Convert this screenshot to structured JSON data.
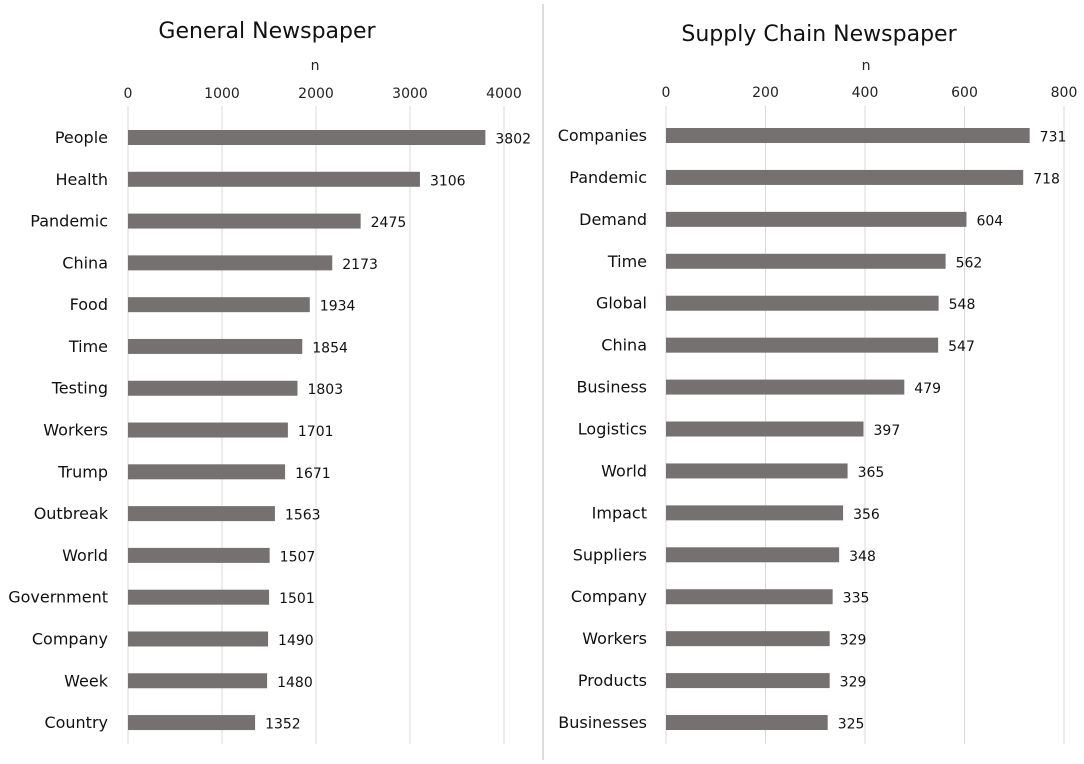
{
  "chart_data": [
    {
      "type": "bar",
      "orientation": "horizontal",
      "title": "General Newspaper",
      "xlabel": "n",
      "ylabel": "",
      "xlim": [
        0,
        4000
      ],
      "ticks": [
        0,
        1000,
        2000,
        3000,
        4000
      ],
      "tick_labels": [
        "0",
        "1000",
        "2000",
        "3000",
        "4000"
      ],
      "axis_position": "top",
      "grid": true,
      "categories": [
        "People",
        "Health",
        "Pandemic",
        "China",
        "Food",
        "Time",
        "Testing",
        "Workers",
        "Trump",
        "Outbreak",
        "World",
        "Government",
        "Company",
        "Week",
        "Country"
      ],
      "values": [
        3802,
        3106,
        2475,
        2173,
        1934,
        1854,
        1803,
        1701,
        1671,
        1563,
        1507,
        1501,
        1490,
        1480,
        1352
      ],
      "value_labels": [
        "3802",
        "3106",
        "2475",
        "2173",
        "1934",
        "1854",
        "1803",
        "1701",
        "1671",
        "1563",
        "1507",
        "1501",
        "1490",
        "1480",
        "1352"
      ],
      "bar_color": "#767171"
    },
    {
      "type": "bar",
      "orientation": "horizontal",
      "title": "Supply Chain Newspaper",
      "xlabel": "n",
      "ylabel": "",
      "xlim": [
        0,
        800
      ],
      "ticks": [
        0,
        200,
        400,
        600,
        800
      ],
      "tick_labels": [
        "0",
        "200",
        "400",
        "600",
        "800"
      ],
      "axis_position": "top",
      "grid": true,
      "categories": [
        "Companies",
        "Pandemic",
        "Demand",
        "Time",
        "Global",
        "China",
        "Business",
        "Logistics",
        "World",
        "Impact",
        "Suppliers",
        "Company",
        "Workers",
        "Products",
        "Businesses"
      ],
      "values": [
        731,
        718,
        604,
        562,
        548,
        547,
        479,
        397,
        365,
        356,
        348,
        335,
        329,
        329,
        325
      ],
      "value_labels": [
        "731",
        "718",
        "604",
        "562",
        "548",
        "547",
        "479",
        "397",
        "365",
        "356",
        "348",
        "335",
        "329",
        "329",
        "325"
      ],
      "bar_color": "#767171"
    }
  ]
}
